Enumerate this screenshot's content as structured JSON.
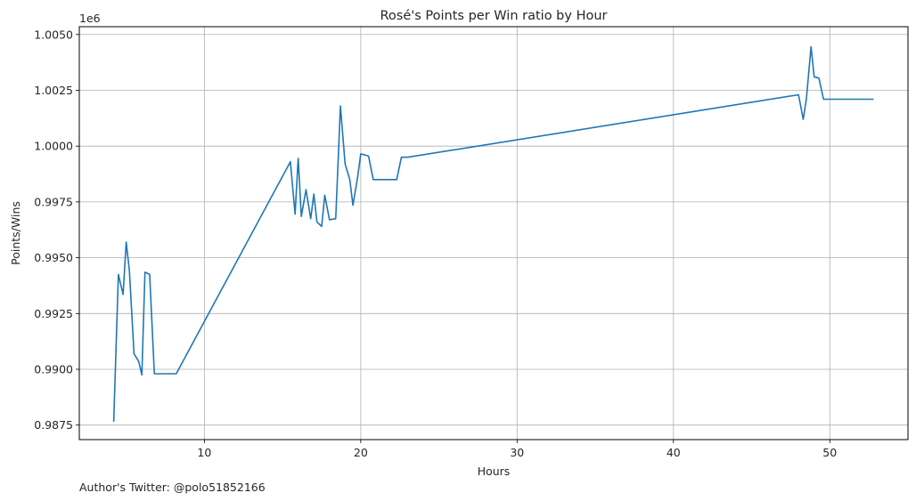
{
  "chart_data": {
    "type": "line",
    "title": "Rosé's Points per Win ratio by Hour",
    "xlabel": "Hours",
    "ylabel": "Points/Wins",
    "offset_text": "1e6",
    "footer": "Author's Twitter: @polo51852166",
    "xlim": [
      2.0,
      55.0
    ],
    "ylim": [
      0.98685,
      1.00535
    ],
    "x_ticks": [
      10,
      20,
      30,
      40,
      50
    ],
    "x_tick_labels": [
      "10",
      "20",
      "30",
      "40",
      "50"
    ],
    "y_ticks": [
      0.9875,
      0.99,
      0.9925,
      0.995,
      0.9975,
      1.0,
      1.0025,
      1.005
    ],
    "y_tick_labels": [
      "0.9875",
      "0.9900",
      "0.9925",
      "0.9950",
      "0.9975",
      "1.0000",
      "1.0025",
      "1.0050"
    ],
    "grid": true,
    "line_color": "#1f77b4",
    "series": [
      {
        "x": [
          4.2,
          4.5,
          4.8,
          5.0,
          5.2,
          5.5,
          5.8,
          6.0,
          6.2,
          6.5,
          6.8,
          8.2,
          15.5,
          15.8,
          16.0,
          16.2,
          16.5,
          16.8,
          17.0,
          17.2,
          17.5,
          17.7,
          18.0,
          18.4,
          18.7,
          19.0,
          19.3,
          19.5,
          19.8,
          20.0,
          20.3,
          20.5,
          20.8,
          22.3,
          22.6,
          23.0,
          48.0,
          48.3,
          48.5,
          48.8,
          49.0,
          49.3,
          49.6,
          52.8
        ],
        "y": [
          0.98765,
          0.99425,
          0.99335,
          0.9957,
          0.99445,
          0.9907,
          0.99035,
          0.98975,
          0.99435,
          0.99425,
          0.9898,
          0.9898,
          0.9993,
          0.99695,
          0.99945,
          0.99685,
          0.99805,
          0.99675,
          0.99785,
          0.9966,
          0.9964,
          0.9978,
          0.9967,
          0.99675,
          1.0018,
          0.9992,
          0.9985,
          0.99735,
          0.9986,
          0.99965,
          0.9996,
          0.99955,
          0.9985,
          0.9985,
          0.9995,
          0.9995,
          1.0023,
          1.0012,
          1.0021,
          1.00445,
          1.0031,
          1.00305,
          1.0021,
          1.0021
        ]
      }
    ]
  }
}
